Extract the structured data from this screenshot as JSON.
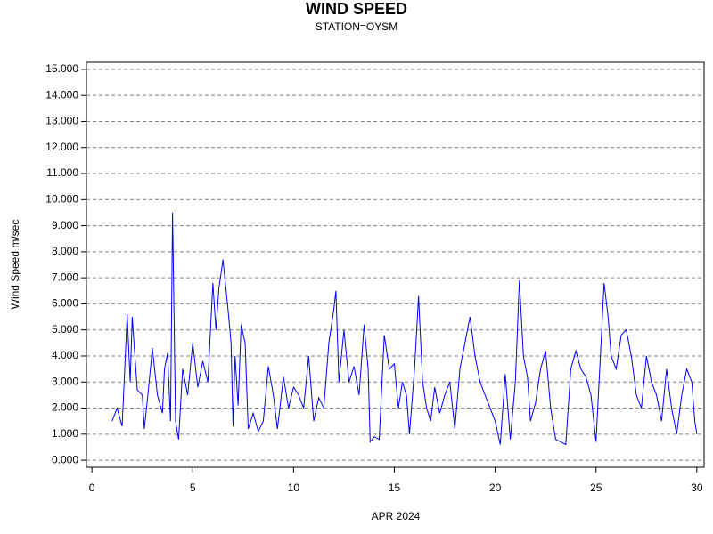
{
  "chart_data": {
    "type": "line",
    "title": "WIND SPEED",
    "subtitle": "STATION=OYSM",
    "x_label": "APR 2024",
    "y_label": "Wind Speed m/sec",
    "xlim": [
      -0.27,
      30.36
    ],
    "xticks": [
      0,
      5,
      10,
      15,
      20,
      25,
      30
    ],
    "ylim": [
      -0.27,
      15.27
    ],
    "yticks": [
      {
        "value": 0,
        "label": "0.000"
      },
      {
        "value": 1,
        "label": "1.000"
      },
      {
        "value": 2,
        "label": "2.000"
      },
      {
        "value": 3,
        "label": "3.000"
      },
      {
        "value": 4,
        "label": "4.000"
      },
      {
        "value": 5,
        "label": "5.000"
      },
      {
        "value": 6,
        "label": "6.000"
      },
      {
        "value": 7,
        "label": "7.000"
      },
      {
        "value": 8,
        "label": "8.000"
      },
      {
        "value": 9,
        "label": "9.000"
      },
      {
        "value": 10,
        "label": "10.000"
      },
      {
        "value": 11,
        "label": "11.000"
      },
      {
        "value": 12,
        "label": "12.000"
      },
      {
        "value": 13,
        "label": "13.000"
      },
      {
        "value": 14,
        "label": "14.000"
      },
      {
        "value": 15,
        "label": "15.000"
      }
    ],
    "grid": true,
    "color": "#0000ff",
    "x": [
      1.0,
      1.25,
      1.5,
      1.6,
      1.75,
      1.9,
      2.0,
      2.25,
      2.5,
      2.6,
      2.75,
      3.0,
      3.25,
      3.5,
      3.6,
      3.75,
      3.9,
      4.0,
      4.15,
      4.3,
      4.5,
      4.75,
      5.0,
      5.25,
      5.5,
      5.75,
      6.0,
      6.15,
      6.3,
      6.5,
      6.75,
      6.9,
      7.0,
      7.1,
      7.25,
      7.4,
      7.6,
      7.75,
      8.0,
      8.25,
      8.5,
      8.75,
      9.0,
      9.2,
      9.5,
      9.75,
      10.0,
      10.25,
      10.5,
      10.75,
      11.0,
      11.25,
      11.5,
      11.75,
      12.0,
      12.1,
      12.25,
      12.5,
      12.75,
      13.0,
      13.25,
      13.5,
      13.7,
      13.8,
      14.0,
      14.25,
      14.5,
      14.75,
      15.0,
      15.2,
      15.4,
      15.6,
      15.75,
      16.0,
      16.2,
      16.4,
      16.6,
      16.8,
      17.0,
      17.25,
      17.5,
      17.75,
      18.0,
      18.25,
      18.5,
      18.75,
      19.0,
      19.25,
      19.5,
      19.75,
      20.0,
      20.25,
      20.5,
      20.75,
      21.0,
      21.2,
      21.4,
      21.6,
      21.75,
      22.0,
      22.25,
      22.5,
      22.75,
      23.0,
      23.25,
      23.5,
      23.75,
      24.0,
      24.25,
      24.5,
      24.75,
      25.0,
      25.25,
      25.4,
      25.6,
      25.75,
      26.0,
      26.25,
      26.5,
      26.75,
      27.0,
      27.25,
      27.5,
      27.75,
      28.0,
      28.25,
      28.5,
      28.75,
      29.0,
      29.25,
      29.5,
      29.75,
      29.9,
      30.0
    ],
    "values": [
      1.5,
      2.0,
      1.3,
      3.0,
      5.6,
      3.0,
      5.5,
      2.7,
      2.5,
      1.2,
      2.3,
      4.3,
      2.5,
      1.8,
      3.5,
      4.1,
      1.5,
      9.5,
      1.5,
      0.8,
      3.5,
      2.5,
      4.5,
      2.8,
      3.8,
      3.0,
      6.8,
      5.0,
      6.6,
      7.7,
      5.8,
      4.5,
      1.3,
      4.0,
      2.1,
      5.2,
      4.5,
      1.2,
      1.8,
      1.1,
      1.5,
      3.6,
      2.5,
      1.2,
      3.2,
      2.0,
      2.8,
      2.5,
      2.0,
      4.0,
      1.5,
      2.4,
      2.0,
      4.5,
      5.8,
      6.5,
      3.0,
      5.0,
      3.0,
      3.6,
      2.5,
      5.2,
      3.5,
      0.7,
      0.9,
      0.8,
      4.8,
      3.5,
      3.7,
      2.0,
      3.0,
      2.5,
      1.0,
      3.5,
      6.3,
      3.0,
      2.0,
      1.5,
      2.8,
      1.8,
      2.5,
      3.0,
      1.2,
      3.5,
      4.5,
      5.5,
      4.0,
      3.0,
      2.5,
      2.0,
      1.5,
      0.6,
      3.3,
      0.8,
      3.0,
      6.9,
      4.0,
      3.2,
      1.5,
      2.2,
      3.5,
      4.2,
      2.0,
      0.8,
      0.7,
      0.6,
      3.5,
      4.2,
      3.5,
      3.2,
      2.5,
      0.7,
      4.5,
      6.8,
      5.5,
      4.0,
      3.5,
      4.8,
      5.0,
      4.0,
      2.5,
      2.0,
      4.0,
      3.0,
      2.5,
      1.5,
      3.5,
      2.0,
      1.0,
      2.5,
      3.5,
      3.0,
      1.5,
      1.0
    ]
  }
}
